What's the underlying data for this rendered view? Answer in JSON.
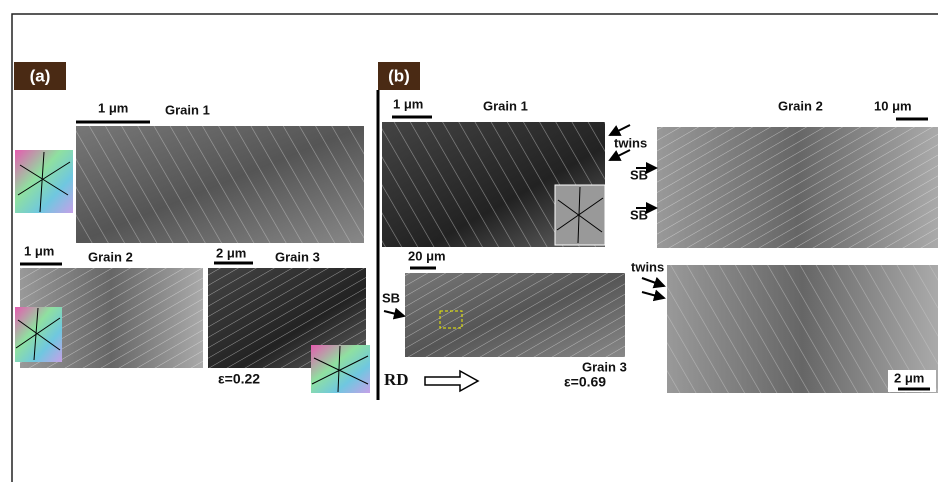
{
  "panel_a": {
    "label": "(a)",
    "strain": "ε=0.22",
    "grain_1": {
      "title": "Grain 1",
      "scale": "1 μm"
    },
    "grain_2": {
      "title": "Grain 2",
      "scale": "1 μm"
    },
    "grain_3": {
      "title": "Grain 3",
      "scale": "2 μm"
    }
  },
  "panel_b": {
    "label": "(b)",
    "strain": "ε=0.69",
    "direction": "RD",
    "grain_1": {
      "title": "Grain 1",
      "scale": "1 μm",
      "annotation": "twins"
    },
    "grain_2": {
      "title": "Grain 2",
      "scale": "10 μm",
      "annotations": [
        "SB",
        "SB"
      ]
    },
    "grain_3": {
      "title": "Grain 3",
      "scale": "20 μm",
      "annotation": "SB"
    },
    "detail": {
      "scale": "2 μm",
      "annotation": "twins"
    }
  }
}
